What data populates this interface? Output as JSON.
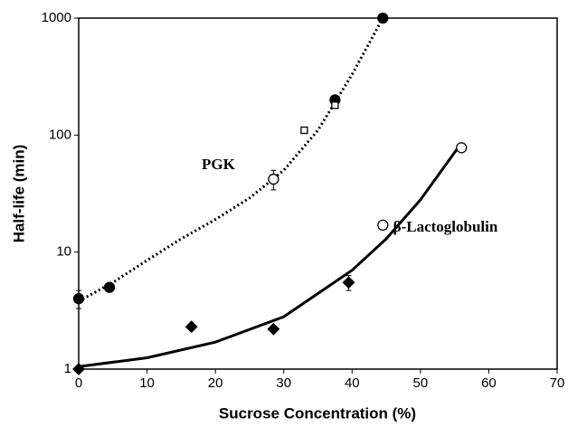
{
  "chart_data": {
    "type": "scatter",
    "x_label": "Sucrose Concentration (%)",
    "y_label": "Half-life (min)",
    "xlim": [
      0,
      70
    ],
    "xticks": [
      0,
      10,
      20,
      30,
      40,
      50,
      60,
      70
    ],
    "ylim": [
      1,
      1000
    ],
    "yticks": [
      1,
      10,
      100,
      1000
    ],
    "y_log": true,
    "annotations": [
      {
        "text": "PGK",
        "x": 18,
        "y": 55
      },
      {
        "text": "β-Lactoglobulin",
        "x": 46,
        "y": 16
      }
    ],
    "series": [
      {
        "kind": "line",
        "dash": "dotted",
        "color": "#000000",
        "x": [
          0,
          5,
          10,
          15,
          20,
          25,
          30,
          35,
          40,
          44.5
        ],
        "values": [
          3.8,
          5.5,
          8.5,
          13,
          19,
          29,
          50,
          110,
          330,
          1000
        ]
      },
      {
        "kind": "line",
        "dash": "solid",
        "color": "#000000",
        "x": [
          0,
          10,
          20,
          30,
          40,
          45,
          50,
          55.5
        ],
        "values": [
          1.05,
          1.25,
          1.7,
          2.8,
          7,
          13,
          28,
          78
        ]
      },
      {
        "kind": "points",
        "marker": "circle",
        "filled": true,
        "color": "#000000",
        "x": [
          0,
          4.5,
          37.5,
          44.5
        ],
        "values": [
          4,
          5,
          200,
          1000
        ],
        "errors": [
          0.7,
          null,
          null,
          null
        ]
      },
      {
        "kind": "points",
        "marker": "circle",
        "filled": false,
        "color": "#000000",
        "x": [
          28.5
        ],
        "values": [
          42
        ],
        "errors": [
          8
        ]
      },
      {
        "kind": "points",
        "marker": "square",
        "filled": false,
        "color": "#000000",
        "x": [
          33,
          37.5
        ],
        "values": [
          110,
          180
        ]
      },
      {
        "kind": "points",
        "marker": "diamond",
        "filled": true,
        "color": "#000000",
        "x": [
          0,
          16.5,
          28.5,
          39.5
        ],
        "values": [
          1,
          2.3,
          2.2,
          5.5
        ],
        "errors": [
          null,
          null,
          null,
          0.8
        ]
      },
      {
        "kind": "points",
        "marker": "circle",
        "filled": false,
        "color": "#000000",
        "x": [
          44.5,
          56
        ],
        "values": [
          17,
          78
        ]
      }
    ]
  }
}
